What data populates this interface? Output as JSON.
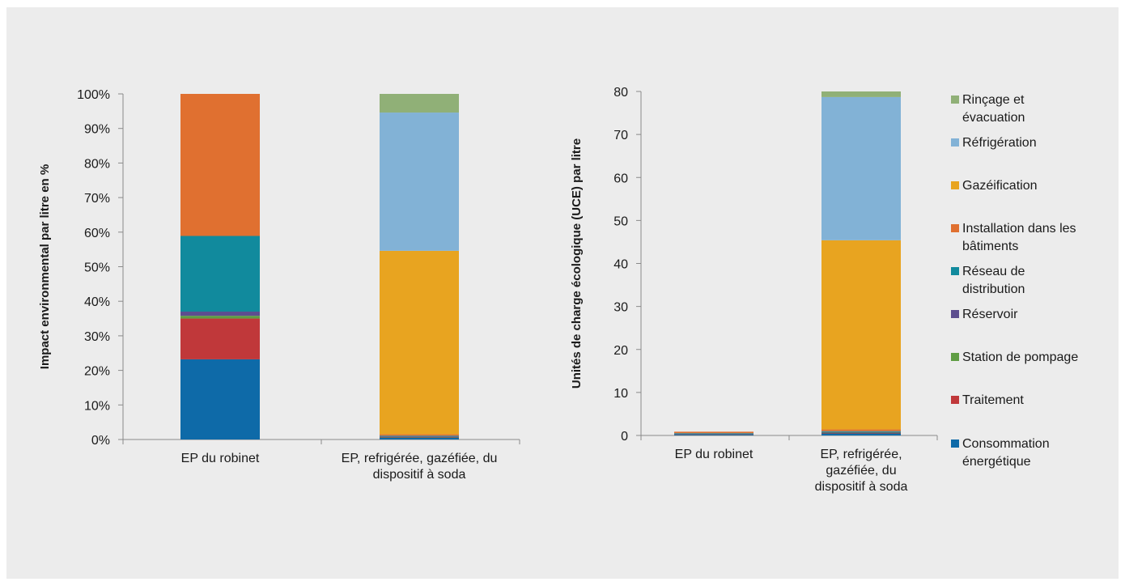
{
  "colors": {
    "consommation": "#0e6aa8",
    "traitement": "#c0383a",
    "station": "#5f9d43",
    "reservoir": "#5d4e8f",
    "reseau": "#118a9d",
    "installation": "#e07030",
    "gazeification": "#e8a420",
    "refrigeration": "#82b2d6",
    "rincage": "#90b077"
  },
  "chart_data": [
    {
      "type": "bar",
      "stacked": true,
      "ylabel": "Impact environmental par litre en %",
      "ylim": [
        0,
        100
      ],
      "ytick_labels": [
        "0%",
        "10%",
        "20%",
        "30%",
        "40%",
        "50%",
        "60%",
        "70%",
        "80%",
        "90%",
        "100%"
      ],
      "categories": [
        "EP du robinet",
        "EP, refrigérée, gazéfiée, du dispositif à soda"
      ],
      "series": [
        {
          "name": "Consommation énergétique",
          "color_key": "consommation",
          "values": [
            23.2,
            0.6
          ]
        },
        {
          "name": "Traitement",
          "color_key": "traitement",
          "values": [
            11.8,
            0.1
          ]
        },
        {
          "name": "Station de pompage",
          "color_key": "station",
          "values": [
            0.8,
            0.1
          ]
        },
        {
          "name": "Réservoir",
          "color_key": "reservoir",
          "values": [
            1.2,
            0.1
          ]
        },
        {
          "name": "Réseau de distribution",
          "color_key": "reseau",
          "values": [
            21.9,
            0.2
          ]
        },
        {
          "name": "Installation dans les bâtiments",
          "color_key": "installation",
          "values": [
            41.1,
            0.4
          ]
        },
        {
          "name": "Gazéification",
          "color_key": "gazeification",
          "values": [
            0,
            53.1
          ]
        },
        {
          "name": "Réfrigération",
          "color_key": "refrigeration",
          "values": [
            0,
            40.0
          ]
        },
        {
          "name": "Rinçage et évacuation",
          "color_key": "rincage",
          "values": [
            0,
            5.4
          ]
        }
      ],
      "grid": false
    },
    {
      "type": "bar",
      "stacked": true,
      "ylabel": "Unités de charge écologique (UCE) par litre",
      "ylim": [
        0,
        80
      ],
      "ytick_labels": [
        "0",
        "10",
        "20",
        "30",
        "40",
        "50",
        "60",
        "70",
        "80"
      ],
      "categories": [
        "EP du robinet",
        "EP, refrigérée, gazéfiée, du dispositif à soda"
      ],
      "series": [
        {
          "name": "Consommation énergétique",
          "color_key": "consommation",
          "values": [
            0.2,
            0.5
          ]
        },
        {
          "name": "Traitement",
          "color_key": "traitement",
          "values": [
            0.1,
            0.1
          ]
        },
        {
          "name": "Station de pompage",
          "color_key": "station",
          "values": [
            0.01,
            0.1
          ]
        },
        {
          "name": "Réservoir",
          "color_key": "reservoir",
          "values": [
            0.01,
            0.1
          ]
        },
        {
          "name": "Réseau de distribution",
          "color_key": "reseau",
          "values": [
            0.2,
            0.2
          ]
        },
        {
          "name": "Installation dans les bâtiments",
          "color_key": "installation",
          "values": [
            0.35,
            0.4
          ]
        },
        {
          "name": "Gazéification",
          "color_key": "gazeification",
          "values": [
            0,
            44.0
          ]
        },
        {
          "name": "Réfrigération",
          "color_key": "refrigeration",
          "values": [
            0,
            33.3
          ]
        },
        {
          "name": "Rinçage et évacuation",
          "color_key": "rincage",
          "values": [
            0,
            1.3
          ]
        }
      ],
      "grid": false
    }
  ],
  "legend": {
    "placement": "right",
    "items": [
      {
        "lines": [
          "Rinçage et",
          "évacuation"
        ],
        "color_key": "rincage"
      },
      {
        "lines": [
          "Réfrigération"
        ],
        "color_key": "refrigeration"
      },
      {
        "lines": [
          "Gazéification"
        ],
        "color_key": "gazeification"
      },
      {
        "lines": [
          "Installation dans les",
          "bâtiments"
        ],
        "color_key": "installation"
      },
      {
        "lines": [
          "Réseau de",
          "distribution"
        ],
        "color_key": "reseau"
      },
      {
        "lines": [
          "Réservoir"
        ],
        "color_key": "reservoir"
      },
      {
        "lines": [
          "Station de pompage"
        ],
        "color_key": "station"
      },
      {
        "lines": [
          "Traitement"
        ],
        "color_key": "traitement"
      },
      {
        "lines": [
          "Consommation",
          "énergétique"
        ],
        "color_key": "consommation"
      }
    ]
  },
  "category_label_lines": [
    [
      [
        "EP du robinet"
      ],
      [
        "EP, refrigérée, gazéfiée, du",
        "dispositif à soda"
      ]
    ],
    [
      [
        "EP du robinet"
      ],
      [
        "EP, refrigérée,",
        "gazéfiée, du",
        "dispositif à soda"
      ]
    ]
  ]
}
